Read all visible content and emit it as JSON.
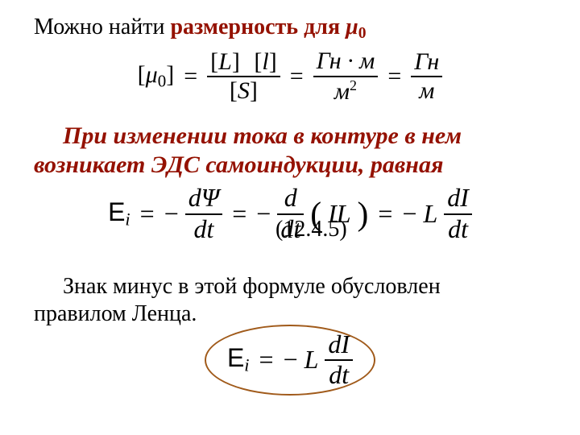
{
  "colors": {
    "text": "#000000",
    "emphasis": "#941100",
    "ellipse_border": "#a05a1a",
    "background": "#ffffff"
  },
  "fonts": {
    "body_family": "Times New Roman",
    "body_size_pt": 21,
    "statement_size_pt": 22,
    "formula_size_pt": 24
  },
  "line1": {
    "plain": "Можно найти ",
    "red_prefix": "размерность для ",
    "symbol": "μ",
    "subscript": "0"
  },
  "formula_mu0": {
    "lhs_open": "[",
    "lhs_sym": "μ",
    "lhs_sub": "0",
    "lhs_close": "]",
    "eq1": "=",
    "num1a": "[",
    "num1a_sym": "L",
    "num1a_close": "]",
    "num1b": "[",
    "num1b_sym": "l",
    "num1b_close": "]",
    "den1": "[",
    "den1_sym": "S",
    "den1_close": "]",
    "eq2": "=",
    "num2": "Гн · м",
    "den2_base": "м",
    "den2_exp": "2",
    "eq3": "=",
    "num3": "Гн",
    "den3": "м"
  },
  "statement": {
    "l1": "При изменении тока в контуре в нем",
    "l2": "возникает ЭДС самоиндукции, равная"
  },
  "formula_emf": {
    "E": "E",
    "E_sub": "i",
    "eq1": "=",
    "neg1": "−",
    "num1": "dΨ",
    "den1": "dt",
    "eq2": "=",
    "neg2": "−",
    "num2": "d",
    "den2": "dt",
    "paren_open": "(",
    "paren_in": "IL",
    "paren_close": ")",
    "eq3": "=",
    "neg3": "−",
    "L": "L",
    "num3": "dI",
    "den3": "dt",
    "eqnum": "(12.4.5)"
  },
  "lenz": {
    "l1": "Знак минус в этой формуле обусловлен",
    "l2": "правилом Ленца."
  },
  "formula_final": {
    "E": "E",
    "E_sub": "i",
    "eq": "=",
    "neg": "−",
    "L": "L",
    "num": "dI",
    "den": "dt"
  }
}
